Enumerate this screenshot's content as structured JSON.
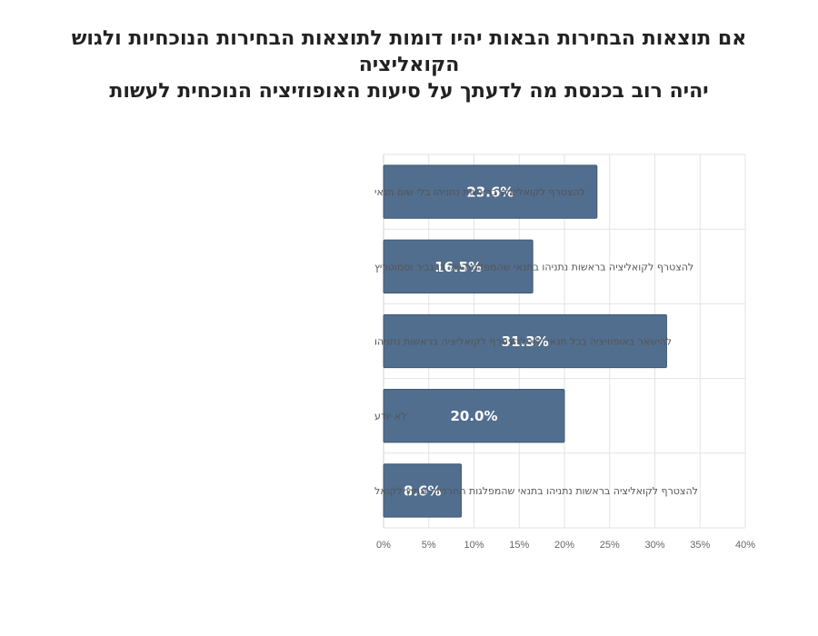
{
  "chart_data": {
    "type": "bar",
    "orientation": "horizontal",
    "title_lines": [
      "אם תוצאות הבחירות הבאות יהיו דומות לתוצאות הבחירות הנוכחיות ולגוש הקואליציה",
      "יהיה רוב בכנסת מה לדעתך על סיעות האופוזיציה הנוכחית לעשות"
    ],
    "categories": [
      "להצטרף לקואליציה בראשות נתניהו בלי שום תנאי",
      "להצטרף לקואליציה בראשות נתניהו בתנאי שהמפלגות של בן גביר וסמוטריץ",
      "להישאר באופוזיציה בכל תנאי ולא להצטרף לקואליציה בראשות נתניהו",
      "לא יודע",
      "להצטרף לקואליציה בראשות נתניהו בתנאי שהמפלגות החרדיות מחוץ לקואל"
    ],
    "values": [
      23.6,
      16.5,
      31.3,
      20.0,
      8.6
    ],
    "data_labels": [
      "23.6%",
      "16.5%",
      "31.3%",
      "20.0%",
      "8.6%"
    ],
    "xlim": [
      0,
      40
    ],
    "x_ticks": [
      0,
      5,
      10,
      15,
      20,
      25,
      30,
      35,
      40
    ],
    "x_tick_labels": [
      "0%",
      "5%",
      "10%",
      "15%",
      "20%",
      "25%",
      "30%",
      "35%",
      "40%"
    ],
    "grid": true,
    "legend": "none",
    "bar_color": "#516e8f",
    "bar_edge_color": "#3f5a78",
    "grid_color": "#e3e3e3"
  }
}
